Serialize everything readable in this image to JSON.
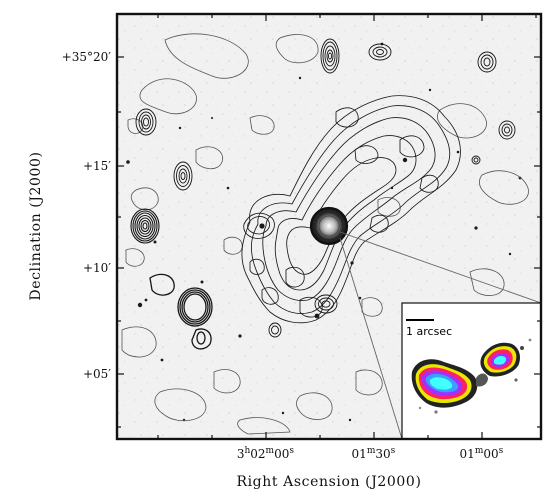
{
  "figure": {
    "xlabel": "Right Ascension (J2000)",
    "ylabel": "Declination (J2000)",
    "colors": {
      "frame": "#111111",
      "contour": "#222222",
      "background": "#ececec",
      "inset_background": "#ffffff"
    }
  },
  "x_ticks": [
    {
      "id": "3h02m00s",
      "main": "3",
      "parts": [
        [
          "h",
          "02"
        ],
        [
          "m",
          "00"
        ],
        [
          "s",
          ""
        ]
      ]
    },
    {
      "id": "01m30s",
      "main": "01",
      "parts": [
        [
          "m",
          "30"
        ],
        [
          "s",
          ""
        ]
      ]
    },
    {
      "id": "01m00s",
      "main": "01",
      "parts": [
        [
          "m",
          "00"
        ],
        [
          "s",
          ""
        ]
      ]
    }
  ],
  "y_ticks": {
    "dec_20": "+35°20′",
    "dec_15": "+15′",
    "dec_10": "+10′",
    "dec_05": "+05′"
  },
  "inset": {
    "scale_label": "1 arcsec"
  }
}
